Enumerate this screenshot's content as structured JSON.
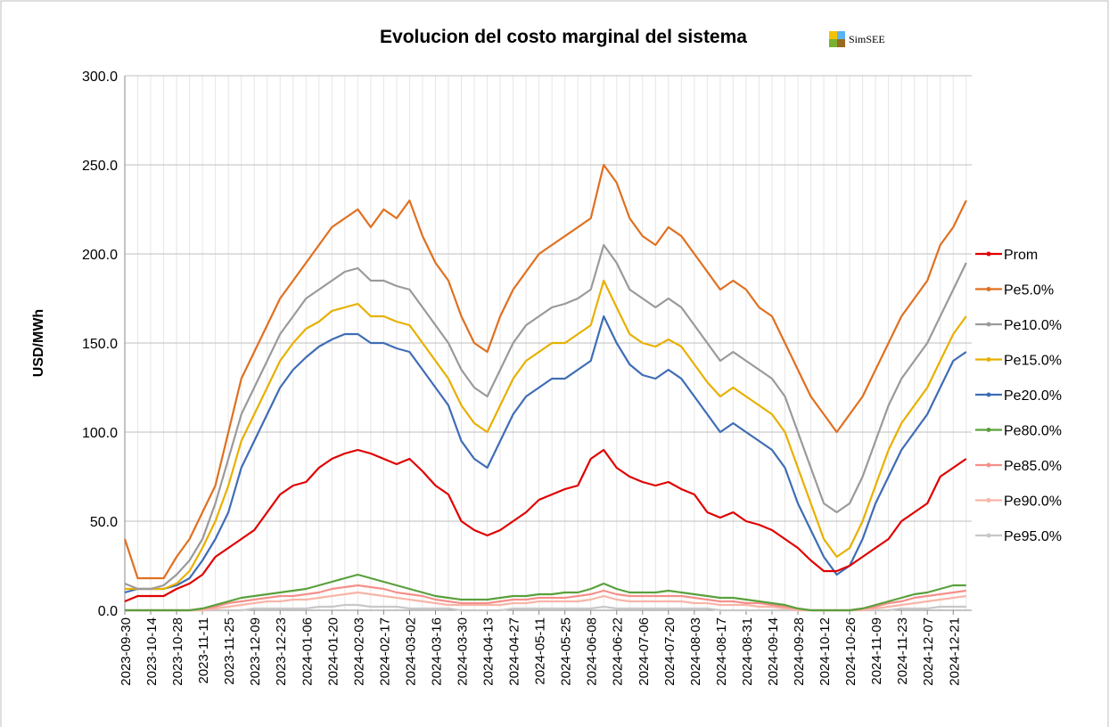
{
  "chart_data": {
    "type": "line",
    "title": "Evolucion del costo marginal del sistema",
    "logo_text": "SimSEE",
    "y_label": "USD/MWh",
    "x": [
      "2023-09-30",
      "2023-10-07",
      "2023-10-14",
      "2023-10-21",
      "2023-10-28",
      "2023-11-04",
      "2023-11-11",
      "2023-11-18",
      "2023-11-25",
      "2023-12-02",
      "2023-12-09",
      "2023-12-16",
      "2023-12-23",
      "2023-12-30",
      "2024-01-06",
      "2024-01-13",
      "2024-01-20",
      "2024-01-27",
      "2024-02-03",
      "2024-02-10",
      "2024-02-17",
      "2024-02-24",
      "2024-03-02",
      "2024-03-09",
      "2024-03-16",
      "2024-03-23",
      "2024-03-30",
      "2024-04-06",
      "2024-04-13",
      "2024-04-20",
      "2024-04-27",
      "2024-05-04",
      "2024-05-11",
      "2024-05-18",
      "2024-05-25",
      "2024-06-01",
      "2024-06-08",
      "2024-06-15",
      "2024-06-22",
      "2024-06-29",
      "2024-07-06",
      "2024-07-13",
      "2024-07-20",
      "2024-07-27",
      "2024-08-03",
      "2024-08-10",
      "2024-08-17",
      "2024-08-24",
      "2024-08-31",
      "2024-09-07",
      "2024-09-14",
      "2024-09-21",
      "2024-09-28",
      "2024-10-05",
      "2024-10-12",
      "2024-10-19",
      "2024-10-26",
      "2024-11-02",
      "2024-11-09",
      "2024-11-16",
      "2024-11-23",
      "2024-11-30",
      "2024-12-07",
      "2024-12-14",
      "2024-12-21",
      "2024-12-28"
    ],
    "xlim": [
      "2023-09-30",
      "2024-12-31"
    ],
    "xticks": [
      "2023-09-30",
      "2023-10-14",
      "2023-10-28",
      "2023-11-11",
      "2023-11-25",
      "2023-12-09",
      "2023-12-23",
      "2024-01-06",
      "2024-01-20",
      "2024-02-03",
      "2024-02-17",
      "2024-03-02",
      "2024-03-16",
      "2024-03-30",
      "2024-04-13",
      "2024-04-27",
      "2024-05-11",
      "2024-05-25",
      "2024-06-08",
      "2024-06-22",
      "2024-07-06",
      "2024-07-20",
      "2024-08-03",
      "2024-08-17",
      "2024-08-31",
      "2024-09-14",
      "2024-09-28",
      "2024-10-12",
      "2024-10-26",
      "2024-11-09",
      "2024-11-23",
      "2024-12-07",
      "2024-12-21"
    ],
    "ylim": [
      0,
      300
    ],
    "yticks": [
      {
        "value": 0,
        "label": "0.0"
      },
      {
        "value": 50,
        "label": "50.0"
      },
      {
        "value": 100,
        "label": "100.0"
      },
      {
        "value": 150,
        "label": "150.0"
      },
      {
        "value": 200,
        "label": "200.0"
      },
      {
        "value": 250,
        "label": "250.0"
      },
      {
        "value": 300,
        "label": "300.0"
      }
    ],
    "grid": true,
    "legend": "right",
    "series": [
      {
        "name": "Prom",
        "color": "#e00000",
        "values": [
          5,
          8,
          8,
          8,
          12,
          15,
          20,
          30,
          35,
          40,
          45,
          55,
          65,
          70,
          72,
          80,
          85,
          88,
          90,
          88,
          85,
          82,
          85,
          78,
          70,
          65,
          50,
          45,
          42,
          45,
          50,
          55,
          62,
          65,
          68,
          70,
          85,
          90,
          80,
          75,
          72,
          70,
          72,
          68,
          65,
          55,
          52,
          55,
          50,
          48,
          45,
          40,
          35,
          28,
          22,
          22,
          25,
          30,
          35,
          40,
          50,
          55,
          60,
          75,
          80,
          85
        ]
      },
      {
        "name": "Pe5.0%",
        "color": "#e07020",
        "values": [
          40,
          18,
          18,
          18,
          30,
          40,
          55,
          70,
          100,
          130,
          145,
          160,
          175,
          185,
          195,
          205,
          215,
          220,
          225,
          215,
          225,
          220,
          230,
          210,
          195,
          185,
          165,
          150,
          145,
          165,
          180,
          190,
          200,
          205,
          210,
          215,
          220,
          250,
          240,
          220,
          210,
          205,
          215,
          210,
          200,
          190,
          180,
          185,
          180,
          170,
          165,
          150,
          135,
          120,
          110,
          100,
          110,
          120,
          135,
          150,
          165,
          175,
          185,
          205,
          215,
          230
        ]
      },
      {
        "name": "Pe10.0%",
        "color": "#9a9a9a",
        "values": [
          15,
          12,
          12,
          14,
          20,
          28,
          40,
          60,
          85,
          110,
          125,
          140,
          155,
          165,
          175,
          180,
          185,
          190,
          192,
          185,
          185,
          182,
          180,
          170,
          160,
          150,
          135,
          125,
          120,
          135,
          150,
          160,
          165,
          170,
          172,
          175,
          180,
          205,
          195,
          180,
          175,
          170,
          175,
          170,
          160,
          150,
          140,
          145,
          140,
          135,
          130,
          120,
          100,
          80,
          60,
          55,
          60,
          75,
          95,
          115,
          130,
          140,
          150,
          165,
          180,
          195
        ]
      },
      {
        "name": "Pe15.0%",
        "color": "#e8b000",
        "values": [
          12,
          12,
          12,
          12,
          15,
          22,
          35,
          50,
          70,
          95,
          110,
          125,
          140,
          150,
          158,
          162,
          168,
          170,
          172,
          165,
          165,
          162,
          160,
          150,
          140,
          130,
          115,
          105,
          100,
          115,
          130,
          140,
          145,
          150,
          150,
          155,
          160,
          185,
          170,
          155,
          150,
          148,
          152,
          148,
          138,
          128,
          120,
          125,
          120,
          115,
          110,
          100,
          80,
          60,
          40,
          30,
          35,
          50,
          70,
          90,
          105,
          115,
          125,
          140,
          155,
          165
        ]
      },
      {
        "name": "Pe20.0%",
        "color": "#3f6db5",
        "values": [
          10,
          12,
          12,
          12,
          14,
          18,
          28,
          40,
          55,
          80,
          95,
          110,
          125,
          135,
          142,
          148,
          152,
          155,
          155,
          150,
          150,
          147,
          145,
          135,
          125,
          115,
          95,
          85,
          80,
          95,
          110,
          120,
          125,
          130,
          130,
          135,
          140,
          165,
          150,
          138,
          132,
          130,
          135,
          130,
          120,
          110,
          100,
          105,
          100,
          95,
          90,
          80,
          60,
          45,
          30,
          20,
          25,
          40,
          60,
          75,
          90,
          100,
          110,
          125,
          140,
          145
        ]
      },
      {
        "name": "Pe80.0%",
        "color": "#59a03c",
        "values": [
          0,
          0,
          0,
          0,
          0,
          0,
          1,
          3,
          5,
          7,
          8,
          9,
          10,
          11,
          12,
          14,
          16,
          18,
          20,
          18,
          16,
          14,
          12,
          10,
          8,
          7,
          6,
          6,
          6,
          7,
          8,
          8,
          9,
          9,
          10,
          10,
          12,
          15,
          12,
          10,
          10,
          10,
          11,
          10,
          9,
          8,
          7,
          7,
          6,
          5,
          4,
          3,
          1,
          0,
          0,
          0,
          0,
          1,
          3,
          5,
          7,
          9,
          10,
          12,
          14,
          14
        ]
      },
      {
        "name": "Pe85.0%",
        "color": "#f4908a",
        "values": [
          0,
          0,
          0,
          0,
          0,
          0,
          1,
          2,
          4,
          5,
          6,
          7,
          8,
          8,
          9,
          10,
          12,
          13,
          14,
          13,
          12,
          10,
          9,
          8,
          6,
          5,
          4,
          4,
          4,
          5,
          6,
          6,
          7,
          7,
          7,
          8,
          9,
          11,
          9,
          8,
          8,
          8,
          8,
          8,
          7,
          6,
          5,
          5,
          4,
          4,
          3,
          2,
          1,
          0,
          0,
          0,
          0,
          1,
          2,
          4,
          5,
          7,
          8,
          9,
          10,
          11
        ]
      },
      {
        "name": "Pe90.0%",
        "color": "#f7b5a8",
        "values": [
          0,
          0,
          0,
          0,
          0,
          0,
          0,
          1,
          2,
          3,
          4,
          5,
          5,
          6,
          6,
          7,
          8,
          9,
          10,
          9,
          8,
          7,
          6,
          5,
          4,
          3,
          3,
          3,
          3,
          3,
          4,
          4,
          5,
          5,
          5,
          5,
          6,
          8,
          6,
          5,
          5,
          5,
          5,
          5,
          4,
          4,
          3,
          3,
          3,
          2,
          2,
          1,
          0,
          0,
          0,
          0,
          0,
          0,
          1,
          2,
          3,
          4,
          5,
          6,
          7,
          8
        ]
      },
      {
        "name": "Pe95.0%",
        "color": "#c8c8c8",
        "values": [
          0,
          0,
          0,
          0,
          0,
          0,
          0,
          0,
          0,
          0,
          1,
          1,
          1,
          1,
          1,
          2,
          2,
          3,
          3,
          2,
          2,
          2,
          1,
          1,
          1,
          1,
          0,
          0,
          0,
          0,
          1,
          1,
          1,
          1,
          1,
          1,
          1,
          2,
          1,
          1,
          1,
          1,
          1,
          1,
          1,
          1,
          0,
          0,
          0,
          0,
          0,
          0,
          0,
          0,
          0,
          0,
          0,
          0,
          0,
          0,
          1,
          1,
          1,
          2,
          2,
          2
        ]
      }
    ]
  }
}
